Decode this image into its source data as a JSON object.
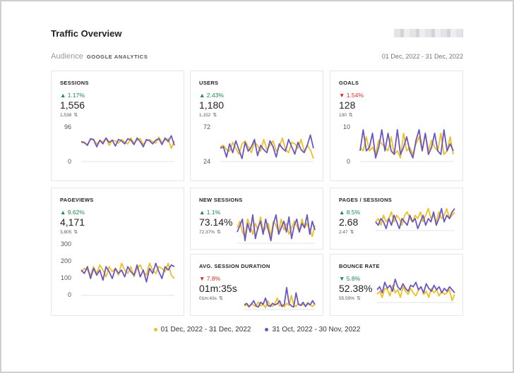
{
  "header": {
    "title": "Traffic Overview",
    "audience_label": "Audience",
    "source_label": "GOOGLE ANALYTICS",
    "date_range": "01 Dec, 2022 - 31 Dec, 2022"
  },
  "colors": {
    "current": "#f0c020",
    "previous": "#6b57c4",
    "up": "#1d8a4e",
    "down": "#d93025"
  },
  "cards": {
    "sessions": {
      "title": "SESSIONS",
      "change": "▲ 1.17%",
      "value": "1,556",
      "prev": "1,538",
      "ytop": "96",
      "ybot": "0"
    },
    "users": {
      "title": "USERS",
      "change": "▲ 2.43%",
      "value": "1,180",
      "prev": "1,152",
      "ytop": "72",
      "ybot": "24"
    },
    "goals": {
      "title": "GOALS",
      "change": "▼ 1.54%",
      "value": "128",
      "prev": "130",
      "ytop": "10",
      "ybot": "0"
    },
    "pageviews": {
      "title": "PAGEVIEWS",
      "change": "▲ 9.62%",
      "value": "4,171",
      "prev": "3,805",
      "y300": "300",
      "y200": "200",
      "y100": "100",
      "y0": "0"
    },
    "new_sessions": {
      "title": "NEW SESSIONS",
      "change": "▲ 1.1%",
      "value": "73.14%",
      "prev": "72.37%"
    },
    "pages_sessions": {
      "title": "PAGES / SESSIONS",
      "change": "▲ 8.5%",
      "value": "2.68",
      "prev": "2.47"
    },
    "avg_session": {
      "title": "AVG. SESSION DURATION",
      "change": "▼ 7.8%",
      "value": "01m:35s",
      "prev": "01m:43s"
    },
    "bounce_rate": {
      "title": "BOUNCE RATE",
      "change": "▼ 5.8%",
      "value": "52.38%",
      "prev": "55.59%"
    }
  },
  "legend": {
    "current": "01 Dec, 2022 - 31 Dec, 2022",
    "previous": "31 Oct, 2022 - 30 Nov, 2022"
  },
  "chart_data": [
    {
      "type": "line",
      "title": "SESSIONS",
      "ylim": [
        0,
        96
      ],
      "series": [
        {
          "name": "01 Dec, 2022 - 31 Dec, 2022",
          "values": [
            52,
            50,
            46,
            60,
            58,
            48,
            56,
            54,
            62,
            44,
            58,
            56,
            50,
            60,
            52,
            48,
            64,
            50,
            58,
            62,
            46,
            56,
            60,
            54,
            50,
            66,
            52,
            58,
            62,
            36,
            56
          ]
        },
        {
          "name": "31 Oct, 2022 - 30 Nov, 2022",
          "values": [
            54,
            52,
            44,
            62,
            60,
            40,
            58,
            48,
            64,
            52,
            58,
            42,
            60,
            56,
            48,
            62,
            58,
            46,
            64,
            54,
            40,
            60,
            56,
            48,
            58,
            62,
            46,
            64,
            54,
            70,
            44
          ]
        }
      ]
    },
    {
      "type": "line",
      "title": "USERS",
      "ylim": [
        24,
        72
      ],
      "series": [
        {
          "name": "01 Dec, 2022 - 31 Dec, 2022",
          "values": [
            44,
            46,
            40,
            38,
            50,
            42,
            34,
            48,
            52,
            44,
            36,
            50,
            46,
            38,
            54,
            40,
            46,
            52,
            38,
            44,
            56,
            40,
            36,
            50,
            48,
            42,
            54,
            38,
            46,
            40,
            28
          ]
        },
        {
          "name": "31 Oct, 2022 - 30 Nov, 2022",
          "values": [
            42,
            44,
            30,
            48,
            36,
            52,
            40,
            28,
            50,
            38,
            44,
            54,
            32,
            46,
            40,
            36,
            52,
            44,
            30,
            48,
            42,
            38,
            54,
            44,
            34,
            50,
            40,
            36,
            46,
            60,
            42
          ]
        }
      ]
    },
    {
      "type": "line",
      "title": "GOALS",
      "ylim": [
        0,
        10
      ],
      "series": [
        {
          "name": "01 Dec, 2022 - 31 Dec, 2022",
          "values": [
            4,
            3,
            7,
            3,
            4,
            2,
            6,
            5,
            4,
            3,
            7,
            2,
            3,
            1,
            8,
            3,
            4,
            2,
            5,
            7,
            3,
            8,
            3,
            6,
            4,
            3,
            8,
            2,
            3,
            7,
            2
          ]
        },
        {
          "name": "31 Oct, 2022 - 30 Nov, 2022",
          "values": [
            3,
            9,
            3,
            4,
            8,
            1,
            4,
            9,
            3,
            8,
            3,
            2,
            9,
            2,
            4,
            7,
            3,
            1,
            6,
            9,
            3,
            8,
            2,
            4,
            8,
            3,
            2,
            9,
            3,
            5,
            3
          ]
        }
      ]
    },
    {
      "type": "line",
      "title": "PAGEVIEWS",
      "ylim": [
        0,
        300
      ],
      "series": [
        {
          "name": "01 Dec, 2022 - 31 Dec, 2022",
          "values": [
            140,
            160,
            150,
            120,
            170,
            130,
            180,
            150,
            110,
            170,
            140,
            160,
            120,
            190,
            150,
            130,
            170,
            110,
            160,
            180,
            140,
            120,
            190,
            150,
            130,
            170,
            160,
            140,
            190,
            120,
            100
          ]
        },
        {
          "name": "31 Oct, 2022 - 30 Nov, 2022",
          "values": [
            150,
            130,
            170,
            100,
            160,
            120,
            150,
            90,
            170,
            140,
            100,
            160,
            130,
            150,
            110,
            170,
            140,
            120,
            180,
            110,
            150,
            80,
            160,
            130,
            190,
            140,
            100,
            170,
            150,
            180,
            170
          ]
        }
      ]
    },
    {
      "type": "line",
      "title": "NEW SESSIONS",
      "series": [
        {
          "name": "01 Dec, 2022 - 31 Dec, 2022",
          "values": [
            72,
            75,
            70,
            68,
            76,
            73,
            69,
            74,
            71,
            77,
            70,
            72,
            74,
            68,
            75,
            73,
            70,
            76,
            71,
            74,
            69,
            72,
            75,
            73,
            70,
            76,
            72,
            74,
            71,
            68,
            73
          ]
        },
        {
          "name": "31 Oct, 2022 - 30 Nov, 2022",
          "values": [
            70,
            73,
            76,
            66,
            74,
            70,
            78,
            67,
            72,
            75,
            69,
            76,
            71,
            66,
            74,
            78,
            69,
            72,
            75,
            70,
            77,
            67,
            73,
            76,
            70,
            74,
            72,
            78,
            69,
            75,
            71
          ]
        }
      ]
    },
    {
      "type": "line",
      "title": "PAGES / SESSIONS",
      "series": [
        {
          "name": "01 Dec, 2022 - 31 Dec, 2022",
          "values": [
            2.5,
            2.6,
            2.4,
            2.7,
            2.5,
            2.6,
            2.8,
            2.5,
            2.7,
            2.6,
            2.4,
            2.7,
            2.8,
            2.6,
            2.5,
            2.7,
            2.6,
            2.8,
            2.5,
            2.7,
            2.9,
            2.6,
            2.7,
            2.5,
            2.8,
            2.6,
            2.7,
            2.9,
            2.6,
            2.7,
            2.8
          ]
        },
        {
          "name": "31 Oct, 2022 - 30 Nov, 2022",
          "values": [
            2.5,
            2.4,
            2.6,
            2.5,
            2.3,
            2.6,
            2.4,
            2.7,
            2.5,
            2.3,
            2.6,
            2.5,
            2.4,
            2.7,
            2.5,
            2.6,
            2.3,
            2.5,
            2.7,
            2.4,
            2.6,
            2.5,
            2.8,
            2.4,
            2.6,
            2.9,
            2.5,
            2.7,
            2.6,
            2.8,
            2.9
          ]
        }
      ]
    },
    {
      "type": "line",
      "title": "AVG. SESSION DURATION",
      "series": [
        {
          "name": "01 Dec, 2022 - 31 Dec, 2022",
          "values": [
            90,
            95,
            85,
            100,
            92,
            88,
            105,
            90,
            96,
            84,
            110,
            92,
            88,
            98,
            120,
            90,
            95,
            86,
            100,
            92,
            130,
            94,
            88,
            100,
            92,
            96,
            90,
            104,
            94,
            88,
            96
          ]
        },
        {
          "name": "31 Oct, 2022 - 30 Nov, 2022",
          "values": [
            94,
            100,
            88,
            96,
            110,
            90,
            86,
            104,
            96,
            120,
            92,
            88,
            100,
            94,
            98,
            110,
            88,
            96,
            160,
            100,
            90,
            86,
            140,
            96,
            92,
            104,
            88,
            100,
            94,
            110,
            96
          ]
        }
      ]
    },
    {
      "type": "line",
      "title": "BOUNCE RATE",
      "series": [
        {
          "name": "01 Dec, 2022 - 31 Dec, 2022",
          "values": [
            52,
            54,
            50,
            56,
            55,
            51,
            58,
            53,
            55,
            50,
            57,
            54,
            52,
            56,
            53,
            51,
            55,
            57,
            52,
            54,
            50,
            56,
            53,
            55,
            51,
            54,
            52,
            53,
            55,
            48,
            52
          ]
        },
        {
          "name": "31 Oct, 2022 - 30 Nov, 2022",
          "values": [
            55,
            57,
            53,
            60,
            56,
            58,
            54,
            62,
            57,
            55,
            59,
            56,
            54,
            58,
            57,
            60,
            55,
            57,
            53,
            59,
            56,
            54,
            58,
            55,
            57,
            53,
            56,
            54,
            57,
            55,
            53
          ]
        }
      ]
    }
  ]
}
